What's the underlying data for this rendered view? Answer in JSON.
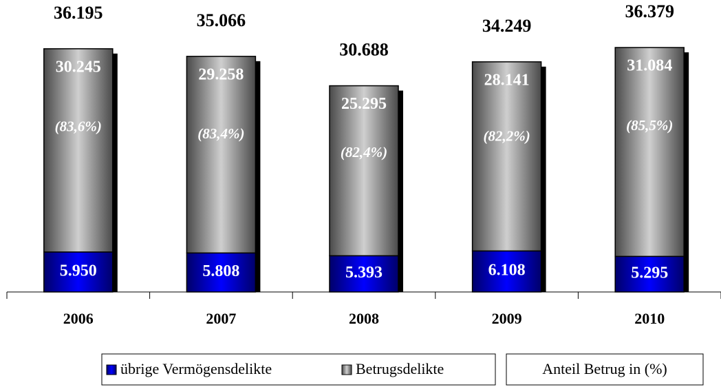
{
  "chart_data": {
    "type": "stacked_bar",
    "categories": [
      "2006",
      "2007",
      "2008",
      "2009",
      "2010"
    ],
    "series": [
      {
        "name": "übrige Vermögensdelikte",
        "color": "#0000ff",
        "values": [
          5950,
          5808,
          5393,
          6108,
          5295
        ],
        "value_labels": [
          "5.950",
          "5.808",
          "5.393",
          "6.108",
          "5.295"
        ]
      },
      {
        "name": "Betrugsdelikte",
        "color": "#c0c0c0",
        "values": [
          30245,
          29258,
          25295,
          28141,
          31084
        ],
        "value_labels": [
          "30.245",
          "29.258",
          "25.295",
          "28.141",
          "31.084"
        ]
      }
    ],
    "totals": {
      "values": [
        36195,
        35066,
        30688,
        34249,
        36379
      ],
      "value_labels": [
        "36.195",
        "35.066",
        "30.688",
        "34.249",
        "36.379"
      ]
    },
    "shares": {
      "name": "Anteil Betrug in (%)",
      "values": [
        83.6,
        83.4,
        82.4,
        82.2,
        85.5
      ],
      "value_labels": [
        "(83,6%)",
        "(83,4%)",
        "(82,4%)",
        "(82,2%)",
        "(85,5%)"
      ]
    }
  }
}
